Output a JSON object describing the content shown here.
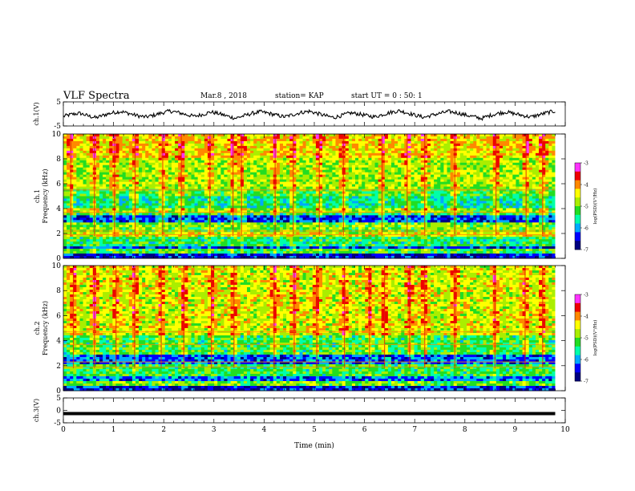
{
  "header": {
    "title": "VLF Spectra",
    "date": "Mar.8  , 2018",
    "station": "station= KAP",
    "start": "start  UT =   0 : 50: 1"
  },
  "colors": {
    "background": "#ffffff",
    "axis": "#000000",
    "waveform": "#000000",
    "colormap": [
      "#000080",
      "#0000ff",
      "#00aaff",
      "#00ffaa",
      "#22dd22",
      "#aaee00",
      "#ffff00",
      "#ff8800",
      "#ee0000",
      "#ff33ff"
    ]
  },
  "chart_data": [
    {
      "type": "line",
      "panel": "ch1-waveform",
      "ylabel": "ch.1(V)",
      "ylim": [
        -5,
        5
      ],
      "yticks": [
        "5",
        "-5"
      ],
      "xlim": [
        0,
        10
      ],
      "series": [
        {
          "values": [
            -1.0,
            -0.2,
            0.3,
            -0.8,
            -1.6,
            -0.4,
            0.5,
            1.0,
            0.2,
            -0.7,
            -1.3,
            -0.6,
            0.4,
            1.2,
            0.6,
            -0.3,
            -1.0,
            -0.2,
            0.8,
            0.1,
            -0.9,
            -1.8,
            -0.8,
            0.2,
            0.9,
            0.3,
            -0.5,
            -1.2,
            -0.3,
            0.6,
            1.1,
            0.2,
            -0.8,
            -1.5,
            -0.6,
            0.4,
            0.0,
            -0.7,
            -1.2,
            -0.2,
            0.7,
            1.3,
            0.4,
            -0.6,
            -1.4,
            -0.5,
            0.3,
            1.0,
            0.5,
            -0.4,
            -1.1,
            -1.9,
            -0.7,
            0.2,
            0.8,
            0.1,
            -0.6,
            -1.3,
            -0.4,
            0.5,
            1.2
          ]
        }
      ]
    },
    {
      "type": "heatmap",
      "panel": "ch1-spectrogram",
      "channel_label": "ch.1",
      "ylabel": "Frequency  (kHz)",
      "xlim": [
        0,
        10
      ],
      "ylim": [
        0,
        10
      ],
      "yticks": [
        "0",
        "2",
        "4",
        "6",
        "8",
        "10"
      ],
      "data_xmax": 9.8,
      "colorbar": {
        "label": "log(PSD)(V²/Hz)",
        "range": [
          -7,
          -3
        ],
        "ticks": [
          "-3",
          "-4",
          "-5",
          "-6",
          "-7"
        ]
      },
      "band_levels": [
        {
          "f0": 0.0,
          "f1": 0.3,
          "level": -6.6
        },
        {
          "f0": 0.3,
          "f1": 0.7,
          "level": -5.2
        },
        {
          "f0": 0.7,
          "f1": 1.0,
          "level": -6.4
        },
        {
          "f0": 1.0,
          "f1": 1.8,
          "level": -5.4
        },
        {
          "f0": 1.8,
          "f1": 2.2,
          "level": -4.6
        },
        {
          "f0": 2.2,
          "f1": 2.8,
          "level": -5.0
        },
        {
          "f0": 2.8,
          "f1": 3.4,
          "level": -6.4
        },
        {
          "f0": 3.4,
          "f1": 3.7,
          "level": -5.4
        },
        {
          "f0": 3.7,
          "f1": 4.0,
          "level": -4.9
        },
        {
          "f0": 4.0,
          "f1": 5.0,
          "level": -5.6
        },
        {
          "f0": 5.0,
          "f1": 5.5,
          "level": -5.2
        },
        {
          "f0": 5.5,
          "f1": 8.0,
          "level": -4.8
        },
        {
          "f0": 8.0,
          "f1": 10.0,
          "level": -4.4
        }
      ],
      "tone_lines_khz": [
        1.9,
        2.2,
        3.7,
        5.5
      ],
      "burst_times_min": [
        0.15,
        0.62,
        1.02,
        1.43,
        1.98,
        2.35,
        2.92,
        3.38,
        3.55,
        4.22,
        4.58,
        5.1,
        5.58,
        6.35,
        6.85,
        7.2,
        7.8,
        8.62,
        9.22,
        9.55
      ]
    },
    {
      "type": "heatmap",
      "panel": "ch2-spectrogram",
      "channel_label": "ch.2",
      "ylabel": "Frequency  (kHz)",
      "xlim": [
        0,
        10
      ],
      "ylim": [
        0,
        10
      ],
      "yticks": [
        "0",
        "2",
        "4",
        "6",
        "8",
        "10"
      ],
      "data_xmax": 9.8,
      "colorbar": {
        "label": "log(PSD)(V²/Hz)",
        "range": [
          -7,
          -3
        ],
        "ticks": [
          "-3",
          "-4",
          "-5",
          "-6",
          "-7"
        ]
      },
      "band_levels": [
        {
          "f0": 0.0,
          "f1": 0.3,
          "level": -6.6
        },
        {
          "f0": 0.3,
          "f1": 0.8,
          "level": -5.0
        },
        {
          "f0": 0.8,
          "f1": 1.2,
          "level": -6.2
        },
        {
          "f0": 1.2,
          "f1": 2.2,
          "level": -5.3
        },
        {
          "f0": 2.2,
          "f1": 2.8,
          "level": -6.3
        },
        {
          "f0": 2.8,
          "f1": 4.5,
          "level": -5.3
        },
        {
          "f0": 4.5,
          "f1": 10.0,
          "level": -4.6
        }
      ],
      "tone_lines_khz": [
        1.9,
        2.3,
        3.7,
        4.7
      ],
      "burst_times_min": [
        0.2,
        0.62,
        1.05,
        1.42,
        1.95,
        2.4,
        2.95,
        3.4,
        4.2,
        4.6,
        5.05,
        5.6,
        6.1,
        6.4,
        6.9,
        7.2,
        7.8,
        8.6,
        9.2,
        9.55
      ]
    },
    {
      "type": "line",
      "panel": "ch3-waveform",
      "ylabel": "ch.3(V)",
      "ylim": [
        -5,
        5
      ],
      "yticks": [
        "5",
        "0",
        "-5"
      ],
      "xlim": [
        0,
        10
      ],
      "xlabel": "Time  (min)",
      "xticks": [
        "0",
        "1",
        "2",
        "3",
        "4",
        "5",
        "6",
        "7",
        "8",
        "9",
        "10"
      ],
      "series": [
        {
          "values": [
            -1.3,
            -1.3
          ]
        }
      ]
    }
  ]
}
